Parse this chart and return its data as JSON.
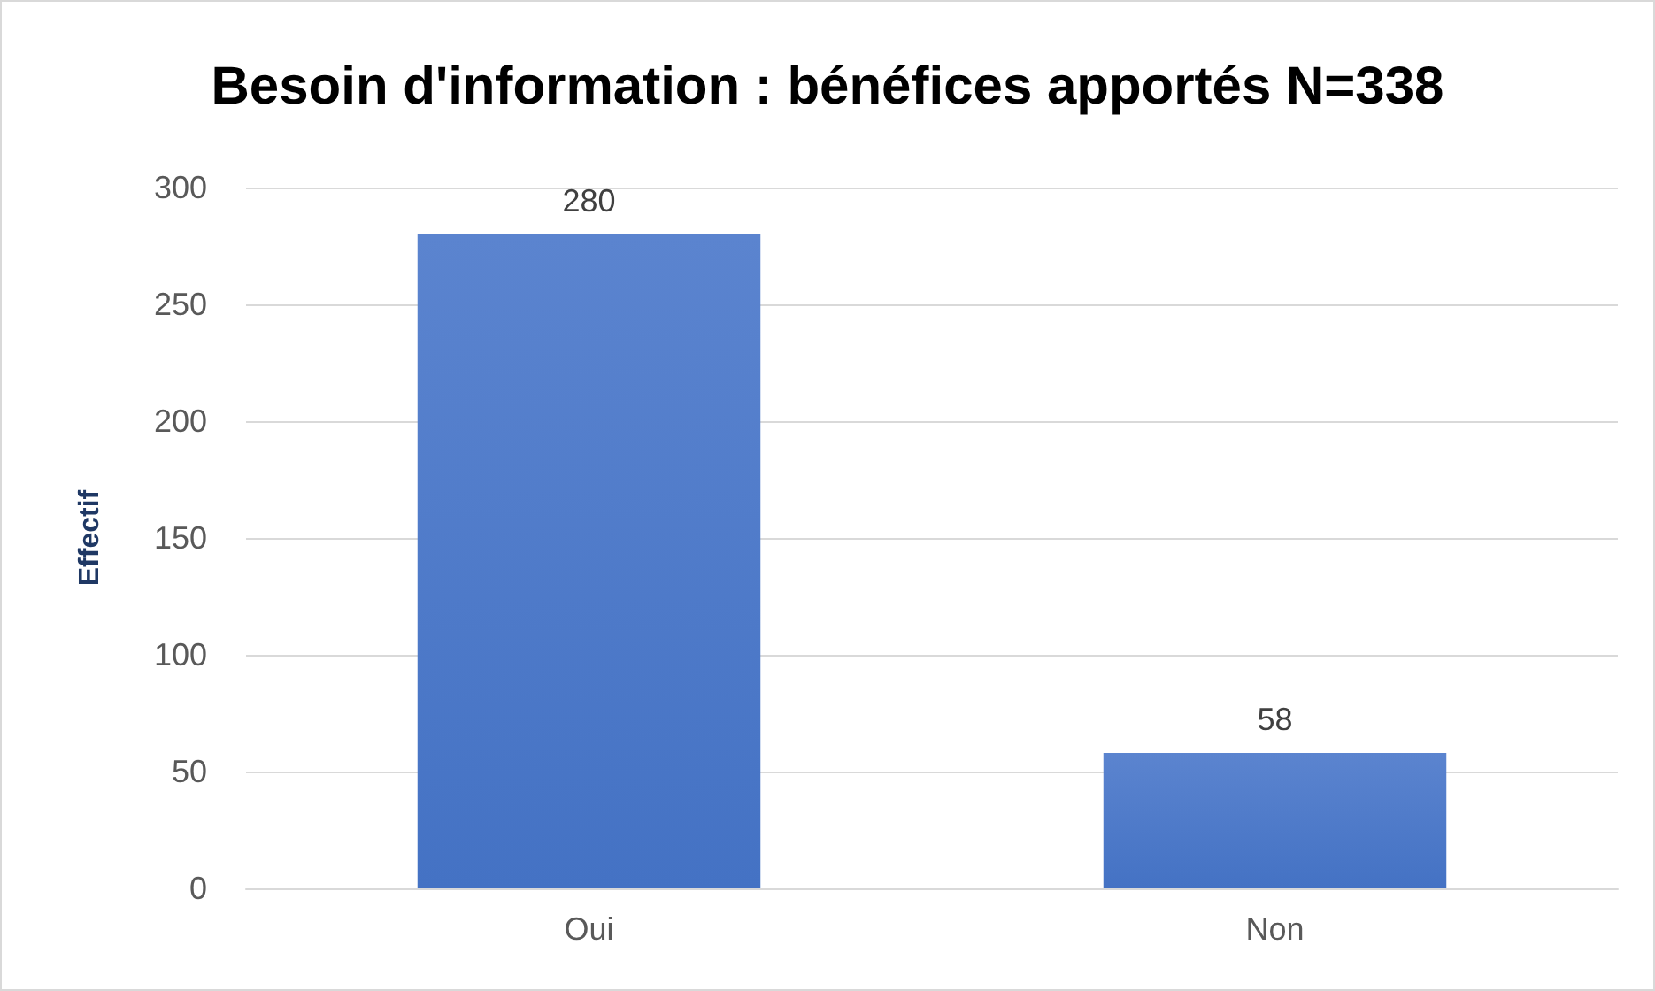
{
  "chart_data": {
    "type": "bar",
    "title": "Besoin d'information : bénéfices apportés N=338",
    "ylabel": "Effectif",
    "categories": [
      "Oui",
      "Non"
    ],
    "values": [
      280,
      58
    ],
    "color": "#4472c4",
    "ylim": [
      0,
      300
    ],
    "yticks": [
      0,
      50,
      100,
      150,
      200,
      250,
      300
    ],
    "grid": "y",
    "data_labels": true
  }
}
